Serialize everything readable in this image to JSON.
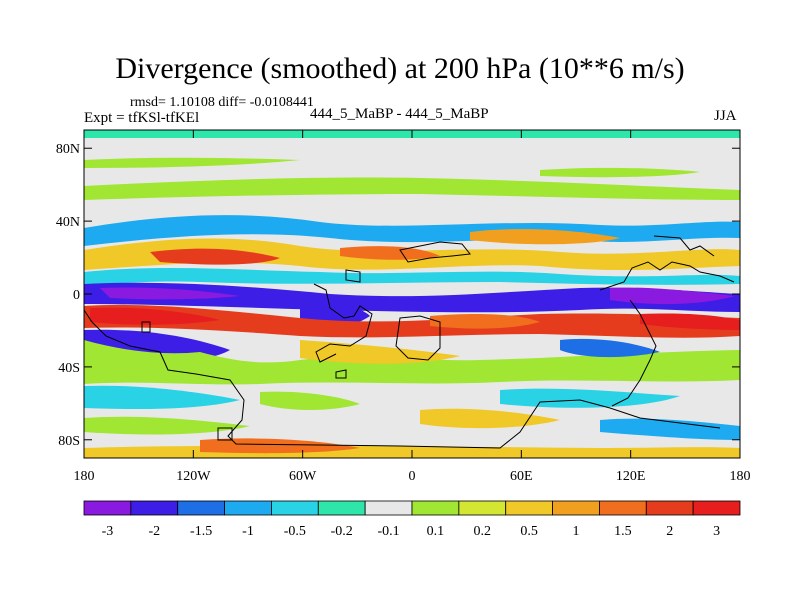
{
  "title": "Divergence (smoothed) at 200 hPa (10**6 m/s)",
  "stats_text": "rmsd= 1.10108 diff= -0.0108441",
  "left_label": "Expt = tfKSl-tfKEl",
  "center_label": "444_5_MaBP - 444_5_MaBP",
  "right_label": "JJA",
  "map": {
    "lon_range": [
      -180,
      180
    ],
    "lat_range": [
      -90,
      90
    ],
    "x_ticks": [
      {
        "value": -180,
        "label": "180"
      },
      {
        "value": -120,
        "label": "120W"
      },
      {
        "value": -60,
        "label": "60W"
      },
      {
        "value": 0,
        "label": "0"
      },
      {
        "value": 60,
        "label": "60E"
      },
      {
        "value": 120,
        "label": "120E"
      },
      {
        "value": 180,
        "label": "180"
      }
    ],
    "y_ticks": [
      {
        "value": 80,
        "label": "80N"
      },
      {
        "value": 40,
        "label": "40N"
      },
      {
        "value": 0,
        "label": "0"
      },
      {
        "value": -40,
        "label": "40S"
      },
      {
        "value": -80,
        "label": "80S"
      }
    ]
  },
  "colorbar": {
    "colors": [
      "#8a1ae0",
      "#3c1ee6",
      "#1e6ee6",
      "#1eaaf0",
      "#2ad2e6",
      "#2ee6aa",
      "#e8e8e8",
      "#a0e632",
      "#d2e632",
      "#f0c828",
      "#f0a01e",
      "#f06e1e",
      "#e63c1e",
      "#e61e1e"
    ],
    "labels": [
      "-3",
      "-2",
      "-1.5",
      "-1",
      "-0.5",
      "-0.2",
      "-0.1",
      "0.1",
      "0.2",
      "0.5",
      "1",
      "1.5",
      "2",
      "3"
    ]
  }
}
